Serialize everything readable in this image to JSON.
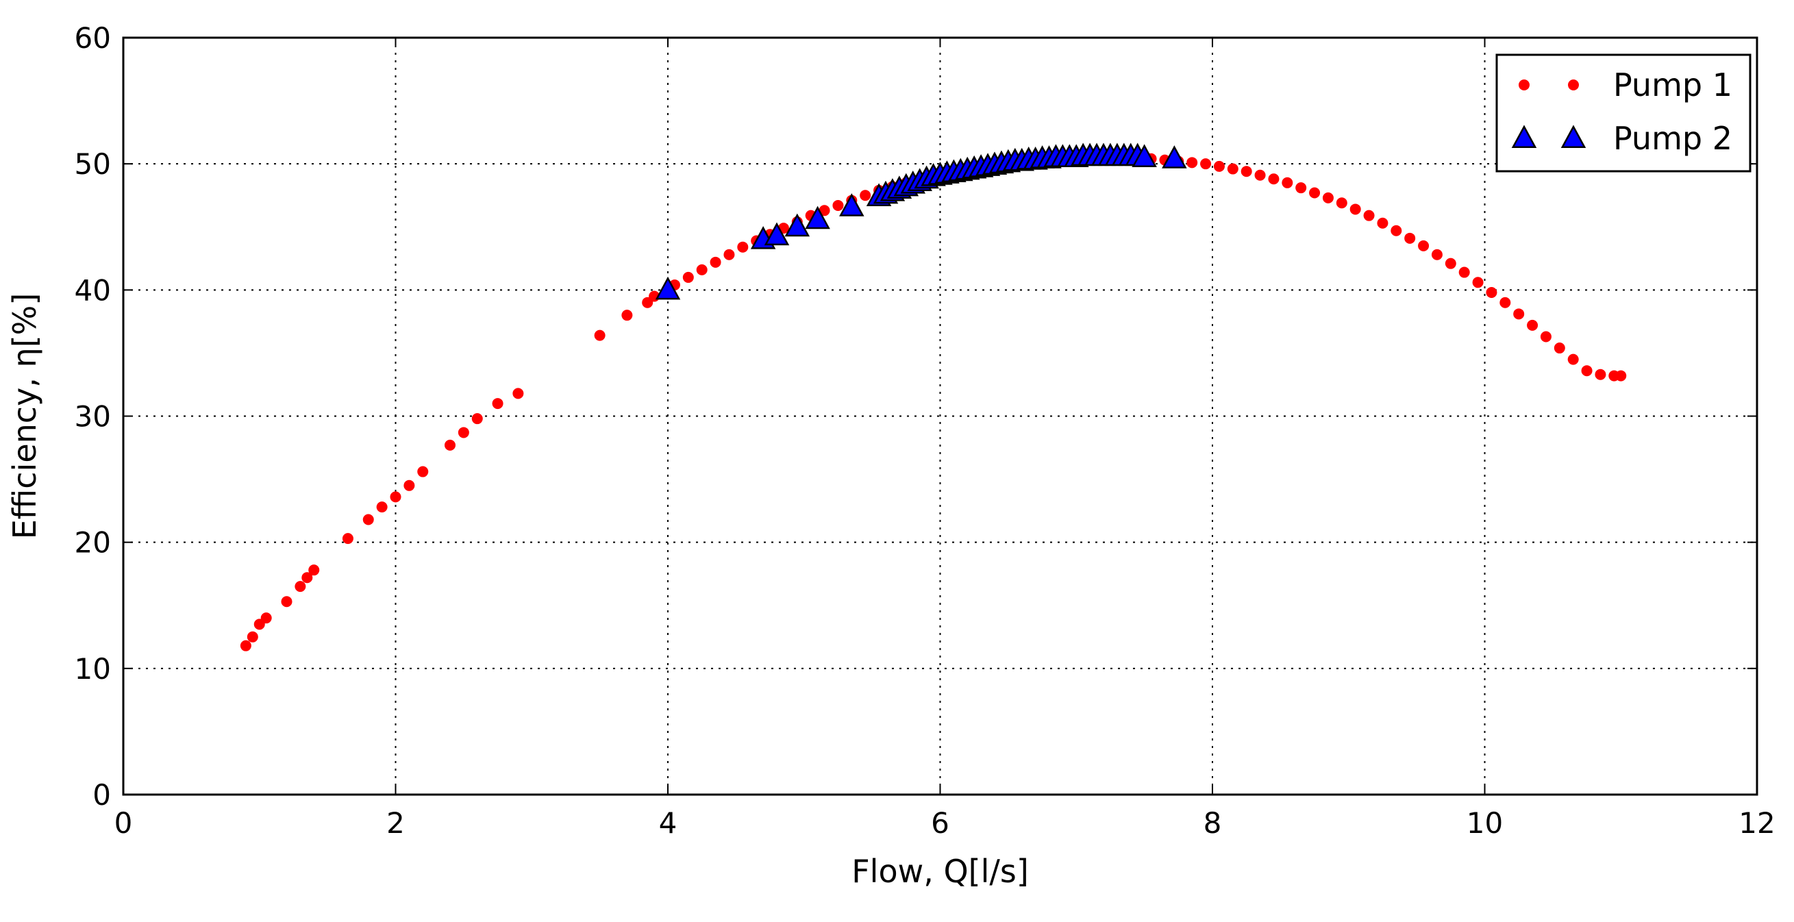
{
  "chart_data": {
    "type": "scatter",
    "title": "",
    "xlabel": "Flow, Q[l/s]",
    "ylabel": "Efficiency, η[%]",
    "xlim": [
      0,
      12
    ],
    "ylim": [
      0,
      60
    ],
    "xticks": [
      0,
      2,
      4,
      6,
      8,
      10,
      12
    ],
    "yticks": [
      0,
      10,
      20,
      30,
      40,
      50,
      60
    ],
    "grid": true,
    "legend_position": "top-right",
    "series": [
      {
        "name": "Pump 1",
        "marker": "circle",
        "color": "#ff0000",
        "x": [
          0.9,
          0.95,
          1.0,
          1.05,
          1.2,
          1.3,
          1.35,
          1.4,
          1.65,
          1.8,
          1.9,
          2.0,
          2.1,
          2.2,
          2.4,
          2.5,
          2.6,
          2.75,
          2.9,
          3.5,
          3.7,
          3.85,
          3.9,
          4.05,
          4.15,
          4.25,
          4.35,
          4.45,
          4.55,
          4.65,
          4.75,
          4.85,
          4.95,
          5.05,
          5.15,
          5.25,
          5.35,
          5.45,
          5.55,
          5.65,
          5.75,
          5.85,
          5.95,
          6.05,
          6.15,
          6.25,
          6.35,
          6.45,
          6.55,
          6.65,
          6.75,
          6.85,
          6.95,
          7.05,
          7.15,
          7.25,
          7.35,
          7.45,
          7.55,
          7.65,
          7.75,
          7.85,
          7.95,
          8.05,
          8.15,
          8.25,
          8.35,
          8.45,
          8.55,
          8.65,
          8.75,
          8.85,
          8.95,
          9.05,
          9.15,
          9.25,
          9.35,
          9.45,
          9.55,
          9.65,
          9.75,
          9.85,
          9.95,
          10.05,
          10.15,
          10.25,
          10.35,
          10.45,
          10.55,
          10.65,
          10.75,
          10.85,
          10.95,
          11.0
        ],
        "y": [
          11.8,
          12.5,
          13.5,
          14.0,
          15.3,
          16.5,
          17.2,
          17.8,
          20.3,
          21.8,
          22.8,
          23.6,
          24.5,
          25.6,
          27.7,
          28.7,
          29.8,
          31.0,
          31.8,
          36.4,
          38.0,
          39.0,
          39.5,
          40.4,
          41.0,
          41.6,
          42.2,
          42.8,
          43.4,
          43.9,
          44.4,
          44.9,
          45.4,
          45.9,
          46.3,
          46.7,
          47.1,
          47.5,
          47.9,
          48.2,
          48.5,
          48.8,
          49.1,
          49.4,
          49.6,
          49.8,
          50.0,
          50.2,
          50.3,
          50.4,
          50.5,
          50.6,
          50.6,
          50.6,
          50.6,
          50.6,
          50.6,
          50.5,
          50.4,
          50.3,
          50.2,
          50.1,
          50.0,
          49.8,
          49.6,
          49.4,
          49.1,
          48.8,
          48.5,
          48.1,
          47.7,
          47.3,
          46.9,
          46.4,
          45.9,
          45.3,
          44.7,
          44.1,
          43.5,
          42.8,
          42.1,
          41.4,
          40.6,
          39.8,
          39.0,
          38.1,
          37.2,
          36.3,
          35.4,
          34.5,
          33.6,
          33.3,
          33.2,
          33.2
        ]
      },
      {
        "name": "Pump 2",
        "marker": "triangle",
        "color": "#0000ff",
        "x": [
          4.0,
          4.7,
          4.8,
          4.95,
          5.1,
          5.35,
          5.55,
          5.6,
          5.65,
          5.7,
          5.75,
          5.8,
          5.85,
          5.9,
          5.95,
          6.0,
          6.05,
          6.1,
          6.15,
          6.2,
          6.25,
          6.3,
          6.35,
          6.4,
          6.45,
          6.5,
          6.55,
          6.6,
          6.65,
          6.7,
          6.75,
          6.8,
          6.85,
          6.9,
          6.95,
          7.0,
          7.05,
          7.1,
          7.15,
          7.2,
          7.25,
          7.3,
          7.35,
          7.4,
          7.45,
          7.5,
          7.72
        ],
        "y": [
          40.0,
          44.0,
          44.3,
          45.0,
          45.6,
          46.6,
          47.4,
          47.6,
          47.8,
          48.0,
          48.2,
          48.4,
          48.6,
          48.8,
          49.0,
          49.1,
          49.2,
          49.3,
          49.4,
          49.5,
          49.6,
          49.7,
          49.8,
          49.9,
          50.0,
          50.1,
          50.2,
          50.2,
          50.3,
          50.3,
          50.4,
          50.4,
          50.5,
          50.5,
          50.5,
          50.5,
          50.6,
          50.6,
          50.6,
          50.6,
          50.6,
          50.6,
          50.6,
          50.6,
          50.6,
          50.5,
          50.4
        ]
      }
    ]
  }
}
